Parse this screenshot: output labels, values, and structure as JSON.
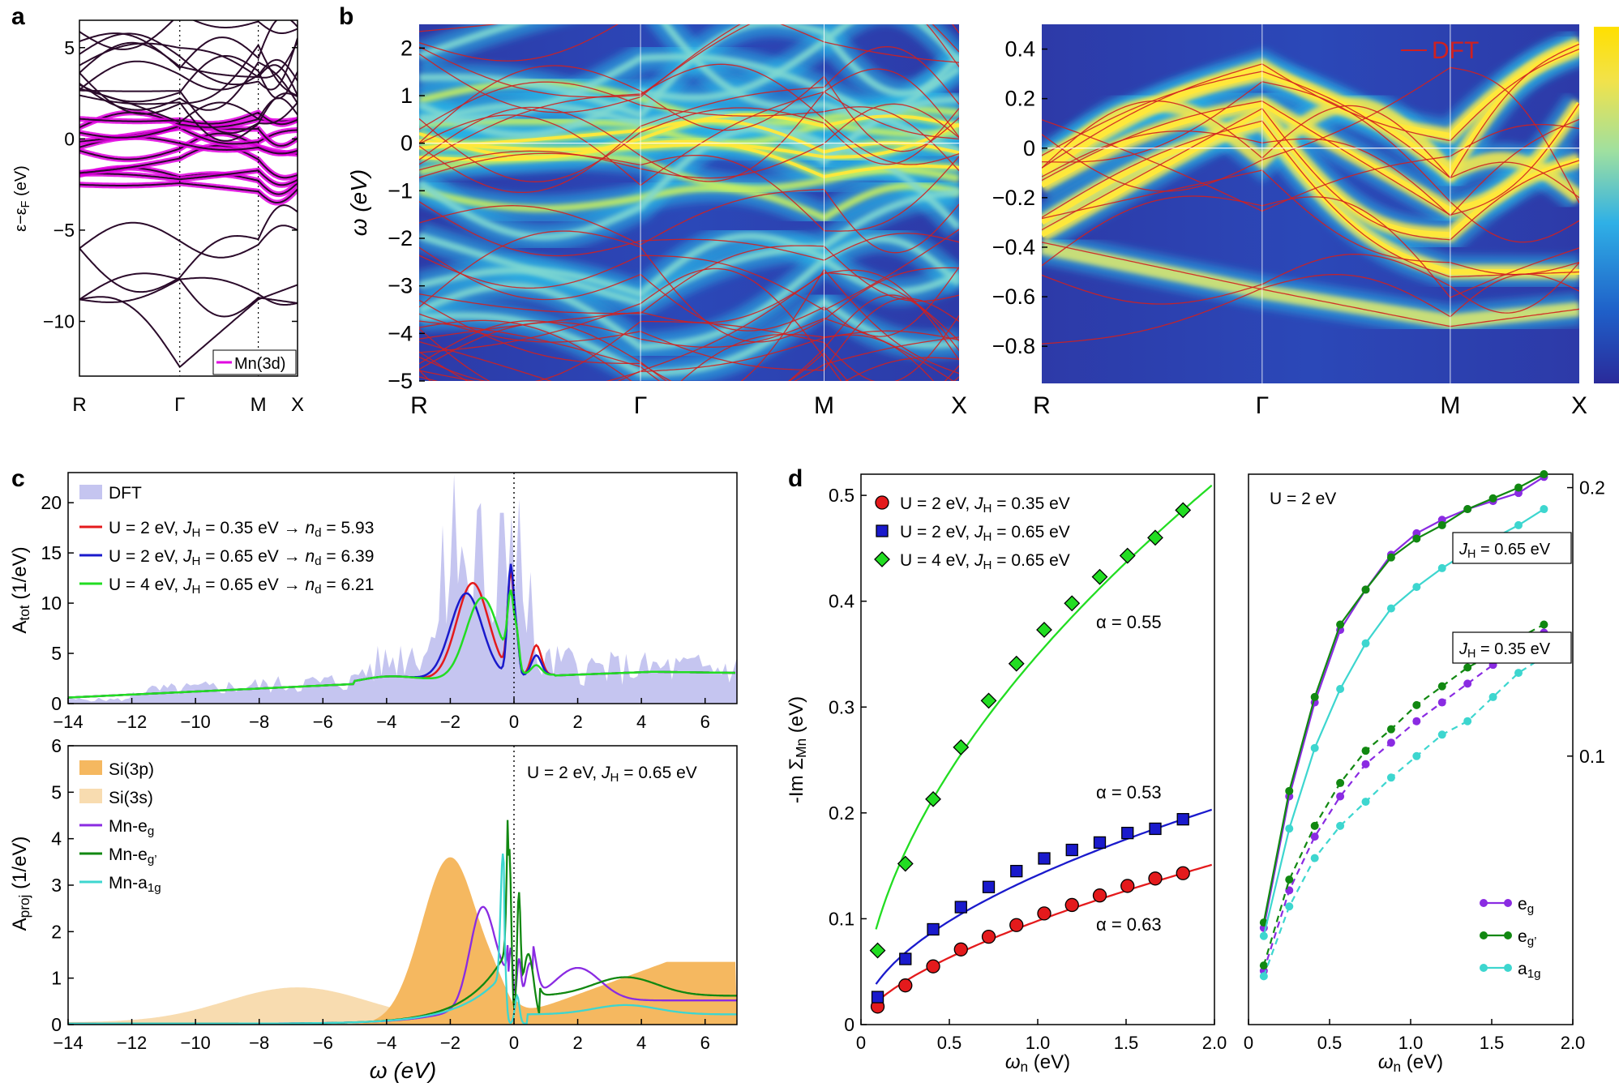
{
  "panel_labels": {
    "a": "a",
    "b": "b",
    "c": "c",
    "d": "d"
  },
  "colors": {
    "mn3d": "#e000e0",
    "dft_line": "#d02020",
    "red": "#e41a1c",
    "blue": "#1a1acc",
    "green": "#22dd22",
    "dft_fill": "#c5c5f0",
    "si3p": "#f5b860",
    "si3s": "#f8dcb0",
    "eg": "#8a2be2",
    "egp": "#118811",
    "a1g": "#3dd6cf"
  },
  "chart_data": [
    {
      "id": "a",
      "type": "line",
      "ylabel": "ε−ε_F (eV)",
      "ylim": [
        -13,
        6.5
      ],
      "yticks": [
        5,
        0,
        -5,
        -10
      ],
      "ytick_labels": [
        "5",
        "0",
        "−5",
        "−10"
      ],
      "xticks": [
        "R",
        "Γ",
        "M",
        "X"
      ],
      "xtick_pos": [
        0,
        0.46,
        0.82,
        1.0
      ],
      "legend": [
        "Mn(3d)"
      ]
    },
    {
      "id": "b-left",
      "type": "heatmap",
      "ylabel": "ω (eV)",
      "ylim": [
        -5,
        2.5
      ],
      "yticks": [
        2,
        1,
        0,
        -1,
        -2,
        -3,
        -4,
        -5
      ],
      "ytick_labels": [
        "2",
        "1",
        "0",
        "−1",
        "−2",
        "−3",
        "−4",
        "−5"
      ],
      "xticks": [
        "R",
        "Γ",
        "M",
        "X"
      ],
      "xtick_pos": [
        0,
        0.41,
        0.75,
        1.0
      ]
    },
    {
      "id": "b-right",
      "type": "heatmap",
      "ylim": [
        -0.95,
        0.5
      ],
      "yticks": [
        0.4,
        0.2,
        0,
        -0.2,
        -0.4,
        -0.6,
        -0.8
      ],
      "ytick_labels": [
        "0.4",
        "0.2",
        "0",
        "−0.2",
        "−0.4",
        "−0.6",
        "−0.8"
      ],
      "xticks": [
        "R",
        "Γ",
        "M",
        "X"
      ],
      "xtick_pos": [
        0,
        0.41,
        0.76,
        1.0
      ],
      "legend": [
        "DFT"
      ]
    },
    {
      "id": "c-top",
      "type": "area",
      "ylabel": "A_tot (1/eV)",
      "xlim": [
        -14,
        7
      ],
      "ylim": [
        0,
        23
      ],
      "xticks": [
        -14,
        -12,
        -10,
        -8,
        -6,
        -4,
        -2,
        0,
        2,
        4,
        6
      ],
      "xtick_labels": [
        "−14",
        "−12",
        "−10",
        "−8",
        "−6",
        "−4",
        "−2",
        "0",
        "2",
        "4",
        "6"
      ],
      "yticks": [
        0,
        5,
        10,
        15,
        20
      ],
      "legend": [
        "DFT",
        "U = 2 eV, J_H = 0.35 eV → n_d = 5.93",
        "U = 2 eV, J_H = 0.65 eV → n_d = 6.39",
        "U = 4 eV, J_H = 0.65 eV → n_d = 6.21"
      ],
      "series": [
        {
          "name": "U=2,JH=0.35",
          "peak": [
            -1.3,
            11.8
          ],
          "peak2": [
            -0.1,
            14.2
          ]
        },
        {
          "name": "U=2,JH=0.65",
          "peak": [
            -1.5,
            11.0
          ],
          "peak2": [
            -0.1,
            14.6
          ]
        },
        {
          "name": "U=4,JH=0.65",
          "peak": [
            -1.0,
            10.2
          ],
          "peak2": [
            -0.2,
            11.5
          ]
        }
      ]
    },
    {
      "id": "c-bottom",
      "type": "area",
      "ylabel": "A_proj (1/eV)",
      "xlabel": "ω (eV)",
      "xlim": [
        -14,
        7
      ],
      "ylim": [
        0,
        6
      ],
      "xticks": [
        -14,
        -12,
        -10,
        -8,
        -6,
        -4,
        -2,
        0,
        2,
        4,
        6
      ],
      "xtick_labels": [
        "−14",
        "−12",
        "−10",
        "−8",
        "−6",
        "−4",
        "−2",
        "0",
        "2",
        "4",
        "6"
      ],
      "yticks": [
        0,
        1,
        2,
        3,
        4,
        5,
        6
      ],
      "annotation": "U = 2 eV, J_H = 0.65 eV",
      "legend": [
        "Si(3p)",
        "Si(3s)",
        "Mn-e_g",
        "Mn-e_g’",
        "Mn-a_1g"
      ]
    },
    {
      "id": "d-left",
      "type": "scatter",
      "ylabel": "-Im Σ_Mn (eV)",
      "xlabel": "ω_n (eV)",
      "xlim": [
        0,
        2.0
      ],
      "ylim": [
        0,
        0.52
      ],
      "xticks": [
        0,
        0.5,
        1.0,
        1.5,
        2.0
      ],
      "xtick_labels": [
        "0",
        "0.5",
        "1.0",
        "1.5",
        "2.0"
      ],
      "yticks": [
        0,
        0.1,
        0.2,
        0.3,
        0.4,
        0.5
      ],
      "ytick_labels": [
        "0",
        "0.1",
        "0.2",
        "0.3",
        "0.4",
        "0.5"
      ],
      "x": [
        0.0942,
        0.2513,
        0.4084,
        0.5655,
        0.7226,
        0.8796,
        1.0367,
        1.1938,
        1.3509,
        1.508,
        1.6651,
        1.8221
      ],
      "series": [
        {
          "name": "U = 2 eV, J_H = 0.35 eV",
          "alpha": "α = 0.63",
          "values": [
            0.017,
            0.037,
            0.055,
            0.071,
            0.083,
            0.094,
            0.105,
            0.113,
            0.122,
            0.131,
            0.138,
            0.143
          ],
          "fit": [
            0.1398,
            0.63
          ]
        },
        {
          "name": "U = 2 eV, J_H = 0.65 eV",
          "alpha": "α = 0.53",
          "values": [
            0.026,
            0.062,
            0.09,
            0.111,
            0.13,
            0.145,
            0.157,
            0.165,
            0.172,
            0.181,
            0.185,
            0.194
          ],
          "fit": [
            0.1451,
            0.53
          ]
        },
        {
          "name": "U = 4 eV, J_H = 0.65 eV",
          "alpha": "α = 0.55",
          "values": [
            0.07,
            0.152,
            0.213,
            0.262,
            0.306,
            0.341,
            0.373,
            0.398,
            0.423,
            0.443,
            0.46,
            0.486
          ],
          "fit": [
            0.3498,
            0.55
          ]
        }
      ]
    },
    {
      "id": "d-right",
      "type": "line",
      "xlabel": "ω_n (eV)",
      "xlim": [
        0,
        2.0
      ],
      "ylim": [
        0,
        0.205
      ],
      "xticks": [
        0,
        0.5,
        1.0,
        1.5,
        2.0
      ],
      "xtick_labels": [
        "0",
        "0.5",
        "1.0",
        "1.5",
        "2.0"
      ],
      "yticks": [
        0.1,
        0.2
      ],
      "ytick_labels": [
        "0.1",
        "0.2"
      ],
      "annotation": "U = 2 eV",
      "labels": [
        "J_H = 0.65 eV",
        "J_H = 0.35 eV"
      ],
      "x": [
        0.0942,
        0.2513,
        0.4084,
        0.5655,
        0.7226,
        0.8796,
        1.0367,
        1.1938,
        1.3509,
        1.508,
        1.6651,
        1.8221
      ],
      "series": [
        {
          "name": "e_g",
          "jh": "0.65",
          "values": [
            0.036,
            0.085,
            0.12,
            0.147,
            0.162,
            0.175,
            0.183,
            0.188,
            0.192,
            0.195,
            0.198,
            0.204
          ]
        },
        {
          "name": "e_g’",
          "jh": "0.65",
          "values": [
            0.038,
            0.087,
            0.122,
            0.149,
            0.162,
            0.174,
            0.181,
            0.186,
            0.192,
            0.196,
            0.2,
            0.205
          ]
        },
        {
          "name": "a_1g",
          "jh": "0.65",
          "values": [
            0.033,
            0.073,
            0.103,
            0.125,
            0.142,
            0.155,
            0.163,
            0.17,
            0.176,
            0.181,
            0.186,
            0.192
          ]
        },
        {
          "name": "e_g",
          "jh": "0.35",
          "values": [
            0.02,
            0.05,
            0.07,
            0.085,
            0.097,
            0.105,
            0.113,
            0.12,
            0.127,
            0.134,
            0.14,
            0.146
          ]
        },
        {
          "name": "e_g’",
          "jh": "0.35",
          "values": [
            0.022,
            0.054,
            0.074,
            0.09,
            0.102,
            0.11,
            0.119,
            0.126,
            0.133,
            0.138,
            0.144,
            0.149
          ]
        },
        {
          "name": "a_1g",
          "jh": "0.35",
          "values": [
            0.018,
            0.044,
            0.062,
            0.074,
            0.083,
            0.092,
            0.1,
            0.108,
            0.113,
            0.122,
            0.131,
            0.137
          ]
        }
      ],
      "legend": [
        "e_g",
        "e_g’",
        "a_1g"
      ]
    }
  ]
}
